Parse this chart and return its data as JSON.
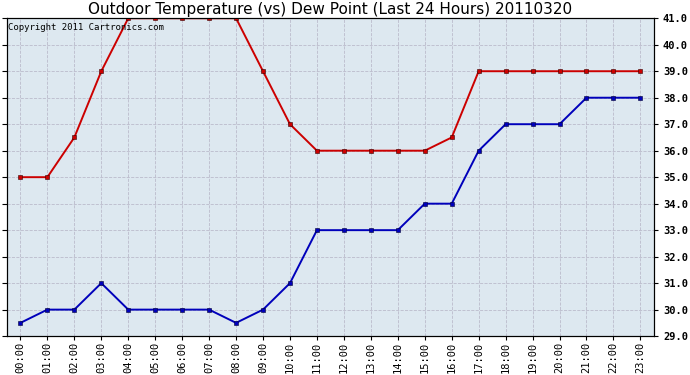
{
  "title": "Outdoor Temperature (vs) Dew Point (Last 24 Hours) 20110320",
  "copyright_text": "Copyright 2011 Cartronics.com",
  "hours": [
    "00:00",
    "01:00",
    "02:00",
    "03:00",
    "04:00",
    "05:00",
    "06:00",
    "07:00",
    "08:00",
    "09:00",
    "10:00",
    "11:00",
    "12:00",
    "13:00",
    "14:00",
    "15:00",
    "16:00",
    "17:00",
    "18:00",
    "19:00",
    "20:00",
    "21:00",
    "22:00",
    "23:00"
  ],
  "temp_red": [
    35.0,
    35.0,
    36.5,
    39.0,
    41.0,
    41.0,
    41.0,
    41.0,
    41.0,
    39.0,
    37.0,
    36.0,
    36.0,
    36.0,
    36.0,
    36.0,
    36.5,
    39.0,
    39.0,
    39.0,
    39.0,
    39.0,
    39.0,
    39.0
  ],
  "dew_blue": [
    29.5,
    30.0,
    30.0,
    31.0,
    30.0,
    30.0,
    30.0,
    30.0,
    29.5,
    30.0,
    31.0,
    33.0,
    33.0,
    33.0,
    33.0,
    34.0,
    34.0,
    36.0,
    37.0,
    37.0,
    37.0,
    38.0,
    38.0,
    38.0
  ],
  "ylim": [
    29.0,
    41.0
  ],
  "ytick_values": [
    29.0,
    30.0,
    31.0,
    32.0,
    33.0,
    34.0,
    35.0,
    36.0,
    37.0,
    38.0,
    39.0,
    40.0,
    41.0
  ],
  "red_color": "#cc0000",
  "blue_color": "#0000bb",
  "bg_color": "#ffffff",
  "plot_bg_color": "#dde8f0",
  "grid_color": "#bbbbcc",
  "title_fontsize": 11,
  "copyright_fontsize": 6.5,
  "tick_fontsize": 7.5,
  "marker_size": 3.5,
  "line_width": 1.4
}
